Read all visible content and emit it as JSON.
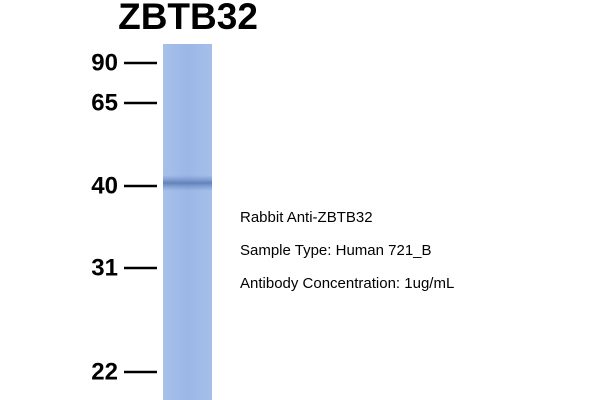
{
  "title": "ZBTB32",
  "markers": [
    "90",
    "65",
    "40",
    "31",
    "22"
  ],
  "notes": [
    "Rabbit Anti-ZBTB32",
    "Sample Type: Human 721_B",
    "Antibody Concentration: 1ug/mL"
  ]
}
